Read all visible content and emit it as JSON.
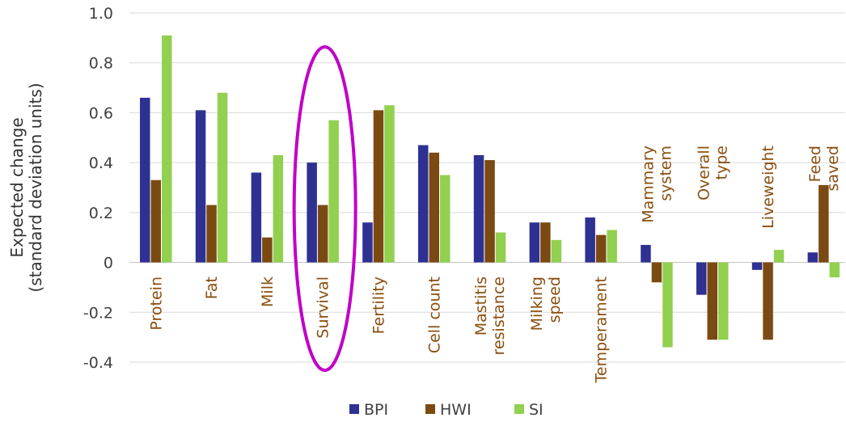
{
  "chart_data": {
    "type": "bar",
    "title": "",
    "xlabel": "",
    "ylabel": [
      "Expected change",
      "(standard deviation units)"
    ],
    "ylim": [
      -0.4,
      1.0
    ],
    "yticks": [
      "1.0",
      "0.8",
      "0.6",
      "0.4",
      "0.2",
      "0",
      "-0.2",
      "-0.4"
    ],
    "grid": true,
    "legend_position": "bottom",
    "categories": [
      [
        "Protein"
      ],
      [
        "Fat"
      ],
      [
        "Milk"
      ],
      [
        "Survival"
      ],
      [
        "Fertility"
      ],
      [
        "Cell count"
      ],
      [
        "Mastitis",
        "resistance"
      ],
      [
        "Milking",
        "speed"
      ],
      [
        "Temperament"
      ],
      [
        "Mammary",
        "system"
      ],
      [
        "Overall",
        "type"
      ],
      [
        "Liveweight"
      ],
      [
        "Feed",
        "saved"
      ]
    ],
    "series": [
      {
        "name": "BPI",
        "color": "#2e3192",
        "values": [
          0.66,
          0.61,
          0.36,
          0.4,
          0.16,
          0.47,
          0.43,
          0.16,
          0.18,
          0.07,
          -0.13,
          -0.03,
          0.04
        ]
      },
      {
        "name": "HWI",
        "color": "#7b4a12",
        "values": [
          0.33,
          0.23,
          0.1,
          0.23,
          0.61,
          0.44,
          0.41,
          0.16,
          0.11,
          -0.08,
          -0.31,
          -0.31,
          0.31
        ]
      },
      {
        "name": "SI",
        "color": "#92d050",
        "values": [
          0.91,
          0.68,
          0.43,
          0.57,
          0.63,
          0.35,
          0.12,
          0.09,
          0.13,
          -0.34,
          -0.31,
          0.05,
          -0.06
        ]
      }
    ],
    "highlight": {
      "category_index": 3,
      "shape": "ellipse",
      "color": "#c000c8"
    }
  }
}
